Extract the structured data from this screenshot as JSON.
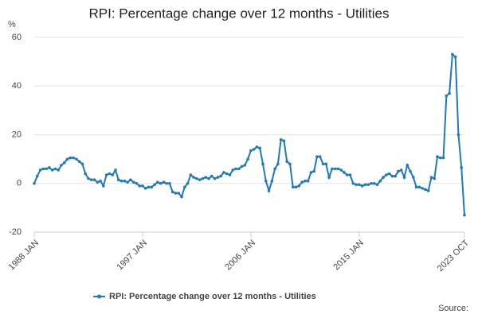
{
  "chart_data": {
    "type": "line",
    "title": "RPI: Percentage change over 12 months - Utilities",
    "y_unit": "%",
    "source": "Source:",
    "categories": [
      "1988 JAN",
      null,
      null,
      null,
      null,
      null,
      null,
      null,
      null,
      null,
      null,
      null,
      null,
      null,
      null,
      null,
      null,
      null,
      null,
      null,
      null,
      null,
      null,
      null,
      null,
      null,
      null,
      null,
      null,
      null,
      null,
      null,
      null,
      null,
      null,
      null,
      "1997 JAN",
      null,
      null,
      null,
      null,
      null,
      null,
      null,
      null,
      null,
      null,
      null,
      null,
      null,
      null,
      null,
      null,
      null,
      null,
      null,
      null,
      null,
      null,
      null,
      null,
      null,
      null,
      null,
      null,
      null,
      null,
      null,
      null,
      null,
      null,
      null,
      "2006 JAN",
      null,
      null,
      null,
      null,
      null,
      null,
      null,
      null,
      null,
      null,
      null,
      null,
      null,
      null,
      null,
      null,
      null,
      null,
      null,
      null,
      null,
      null,
      null,
      null,
      null,
      null,
      null,
      null,
      null,
      null,
      null,
      null,
      null,
      null,
      null,
      "2015 JAN",
      null,
      null,
      null,
      null,
      null,
      null,
      null,
      null,
      null,
      null,
      null,
      null,
      null,
      null,
      null,
      null,
      null,
      null,
      null,
      null,
      null,
      null,
      null,
      null,
      null,
      null,
      null,
      null,
      null,
      null,
      null,
      null,
      null,
      null,
      "2023 OCT"
    ],
    "series": [
      {
        "name": "RPI: Percentage change over 12 months - Utilities",
        "color": "#1f7ab8",
        "values": [
          0,
          3,
          5.5,
          6,
          6,
          6.5,
          5.5,
          6,
          5.5,
          7.5,
          8.5,
          10,
          10.5,
          10.5,
          10,
          9,
          8,
          4,
          2,
          1.5,
          1.5,
          0.5,
          1,
          -1,
          3.5,
          4,
          3.5,
          5.5,
          1.5,
          1,
          1,
          0.5,
          1.5,
          0.5,
          0,
          -1,
          -1,
          -2,
          -1.5,
          -1.5,
          -0.5,
          0.5,
          0,
          0.5,
          0,
          0,
          -3.5,
          -4,
          -4,
          -5.5,
          -1.5,
          0,
          3.5,
          2.5,
          2,
          1.5,
          2,
          2.5,
          2,
          3,
          2,
          2.5,
          3,
          4.5,
          4,
          3.5,
          5.5,
          6,
          6,
          7,
          7.5,
          10,
          13.5,
          14,
          15,
          14.5,
          8,
          1,
          -3,
          1,
          6,
          8,
          18,
          17.5,
          9,
          8,
          -1.5,
          -1.5,
          -1,
          0.5,
          1,
          1,
          4.5,
          5,
          11,
          11,
          8,
          8,
          2.5,
          6,
          6,
          6,
          5.5,
          4.5,
          3.5,
          3.5,
          0,
          -0.5,
          -0.5,
          -1,
          -0.5,
          -0.5,
          0,
          0,
          -0.5,
          1,
          2.5,
          3.5,
          4,
          3,
          3,
          5,
          5.5,
          2.5,
          7.5,
          5,
          2.5,
          -1.5,
          -1.5,
          -2,
          -2.5,
          -3,
          2.5,
          2,
          11,
          10.5,
          10.5,
          36,
          37,
          53,
          52,
          20,
          6.5,
          -13
        ]
      }
    ],
    "ylim": [
      -20,
      60
    ],
    "yticks": [
      -20,
      0,
      20,
      40,
      60
    ],
    "grid": true
  }
}
